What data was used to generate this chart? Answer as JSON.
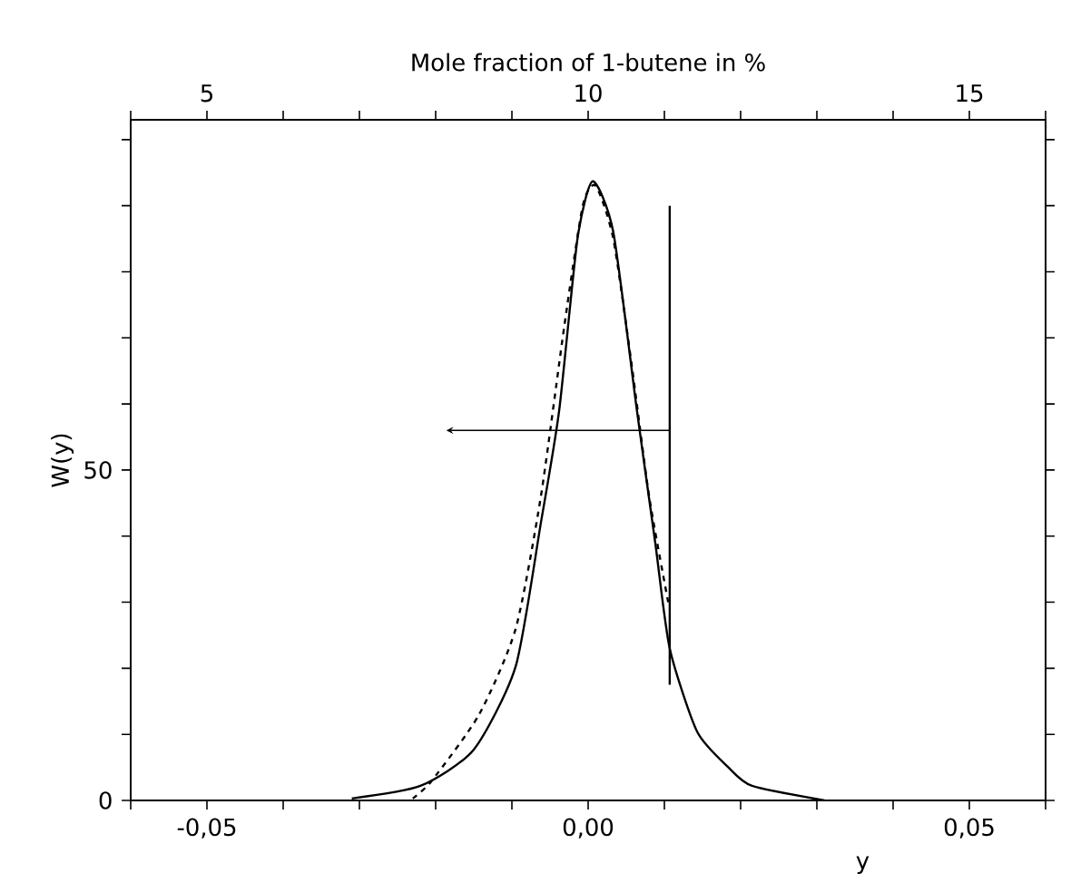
{
  "chart_data": {
    "type": "line",
    "xlabel": "y",
    "ylabel": "W(y)",
    "x2label": "Mole fraction of 1-butene in %",
    "xlim": [
      -0.06,
      0.06
    ],
    "xticks": [
      {
        "value": -0.06,
        "label": null
      },
      {
        "value": -0.05,
        "label": "-0,05"
      },
      {
        "value": -0.04,
        "label": null
      },
      {
        "value": -0.03,
        "label": null
      },
      {
        "value": -0.02,
        "label": null
      },
      {
        "value": -0.01,
        "label": null
      },
      {
        "value": 0,
        "label": "0,00"
      },
      {
        "value": 0.01,
        "label": null
      },
      {
        "value": 0.02,
        "label": null
      },
      {
        "value": 0.03,
        "label": null
      },
      {
        "value": 0.04,
        "label": null
      },
      {
        "value": 0.05,
        "label": "0,05"
      },
      {
        "value": 0.06,
        "label": null
      }
    ],
    "x2lim": [
      4,
      16
    ],
    "x2ticks": [
      {
        "value": 4,
        "label": null
      },
      5,
      {
        "value": 6,
        "label": null
      },
      {
        "value": 7,
        "label": null
      },
      {
        "value": 8,
        "label": null
      },
      {
        "value": 9,
        "label": null
      },
      10,
      {
        "value": 11,
        "label": null
      },
      {
        "value": 12,
        "label": null
      },
      {
        "value": 13,
        "label": null
      },
      {
        "value": 14,
        "label": null
      },
      15,
      {
        "value": 16,
        "label": null
      }
    ],
    "ylim": [
      0,
      103
    ],
    "yticks": [
      0,
      {
        "value": 10,
        "label": null
      },
      {
        "value": 20,
        "label": null
      },
      {
        "value": 30,
        "label": null
      },
      {
        "value": 40,
        "label": null
      },
      50,
      {
        "value": 60,
        "label": null
      },
      {
        "value": 70,
        "label": null
      },
      {
        "value": 80,
        "label": null
      },
      {
        "value": 90,
        "label": null
      },
      {
        "value": 100,
        "label": null
      }
    ],
    "grid": false,
    "marker": "none",
    "series": [
      {
        "color": "#000000",
        "line_style": "solid",
        "x": [
          -0.031,
          -0.022,
          -0.015,
          -0.0095,
          -0.0062,
          -0.0038,
          -0.0014,
          0.0006,
          0.0033,
          0.0064,
          0.0088,
          0.0107,
          0.0143,
          0.0184,
          0.0215,
          0.031
        ],
        "values": [
          0.3,
          2.2,
          7.7,
          20.3,
          42,
          59,
          85,
          93.7,
          86,
          59,
          39,
          23,
          10.4,
          5,
          2.2,
          0
        ]
      },
      {
        "color": "#000000",
        "line_style": "dashed",
        "x": [
          -0.023,
          -0.0205,
          -0.0143,
          -0.0095,
          -0.0062,
          -0.0031,
          -0.0007,
          0.001,
          0.0033,
          0.0057,
          0.008,
          0.0105
        ],
        "values": [
          0.3,
          3,
          13,
          26,
          46,
          72,
          90,
          93,
          85,
          66,
          46,
          30
        ]
      },
      {
        "color": "#000000",
        "line_style": "solid",
        "x": [
          0.0107,
          0.0107
        ],
        "values": [
          90,
          17.5
        ]
      }
    ]
  }
}
